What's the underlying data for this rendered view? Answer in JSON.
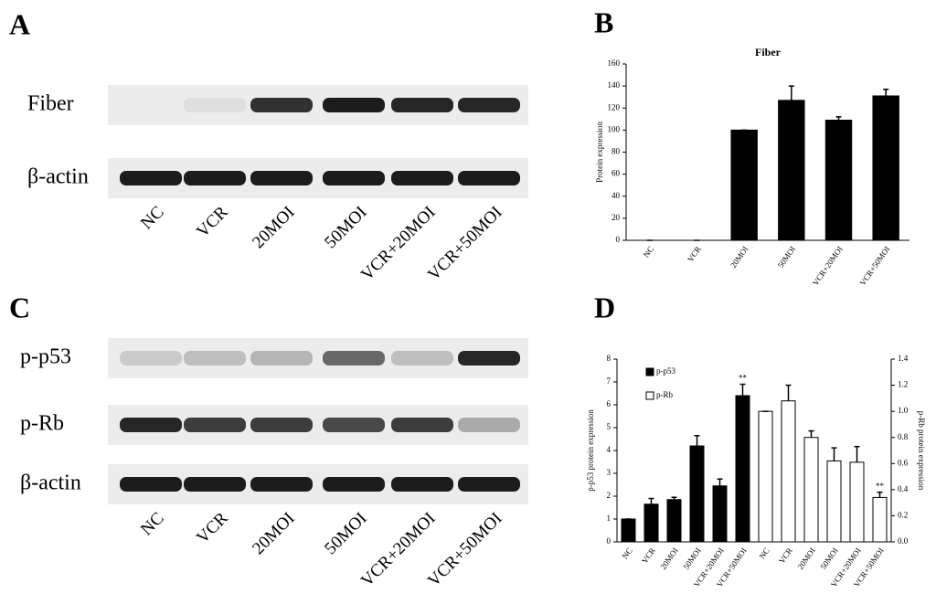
{
  "panel_labels": [
    "A",
    "B",
    "C",
    "D"
  ],
  "blot_a": {
    "rows": [
      "Fiber",
      "β-actin"
    ],
    "lanes": [
      "NC",
      "VCR",
      "20MOI",
      "50MOI",
      "VCR+20MOI",
      "VCR+50MOI"
    ]
  },
  "blot_c": {
    "rows": [
      "p-p53",
      "p-Rb",
      "β-actin"
    ],
    "lanes": [
      "NC",
      "VCR",
      "20MOI",
      "50MOI",
      "VCR+20MOI",
      "VCR+50MOI"
    ]
  },
  "chart_data": [
    {
      "type": "bar",
      "title": "Fiber",
      "ylabel": "Protein expression",
      "categories": [
        "NC",
        "VCR",
        "20MOI",
        "50MOI",
        "VCR+20MOI",
        "VCR+50MOI"
      ],
      "values": [
        0,
        0,
        100,
        127,
        109,
        131
      ],
      "errors": [
        0,
        0,
        0,
        13,
        3,
        6
      ],
      "color": "#000000",
      "ylim": [
        0,
        160
      ],
      "yticks": [
        0,
        20,
        40,
        60,
        80,
        100,
        120,
        140,
        160
      ]
    },
    {
      "type": "bar",
      "ylabel": "p-p53 protein expression",
      "y2label": "p-Rb protein expression",
      "categories": [
        "NC",
        "VCR",
        "20MOI",
        "50MOI",
        "VCR+20MOI",
        "VCR+50MOI",
        "NC",
        "VCR",
        "20MOI",
        "50MOI",
        "VCR+20MOI",
        "VCR+50MOI"
      ],
      "series": [
        {
          "name": "p-p53",
          "color": "#000000",
          "values": [
            1.0,
            1.65,
            1.85,
            4.2,
            2.45,
            6.4,
            null,
            null,
            null,
            null,
            null,
            null
          ],
          "errors": [
            0,
            0.25,
            0.1,
            0.45,
            0.3,
            0.5,
            null,
            null,
            null,
            null,
            null,
            null
          ]
        },
        {
          "name": "p-Rb",
          "color": "#ffffff",
          "axis": "y2",
          "values": [
            null,
            null,
            null,
            null,
            null,
            null,
            1.0,
            1.08,
            0.8,
            0.62,
            0.61,
            0.34
          ],
          "errors": [
            null,
            null,
            null,
            null,
            null,
            null,
            0,
            0.12,
            0.05,
            0.1,
            0.12,
            0.04
          ]
        }
      ],
      "annotations": [
        "**",
        "**"
      ],
      "ylim": [
        0,
        8
      ],
      "yticks": [
        0,
        1,
        2,
        3,
        4,
        5,
        6,
        7,
        8
      ],
      "y2lim": [
        0,
        1.4
      ],
      "y2ticks": [
        {
          "value": 0,
          "label": "0.0"
        },
        0.2,
        0.4,
        0.6,
        0.8,
        {
          "value": 1,
          "label": "1.0"
        },
        1.2,
        1.4
      ]
    }
  ]
}
